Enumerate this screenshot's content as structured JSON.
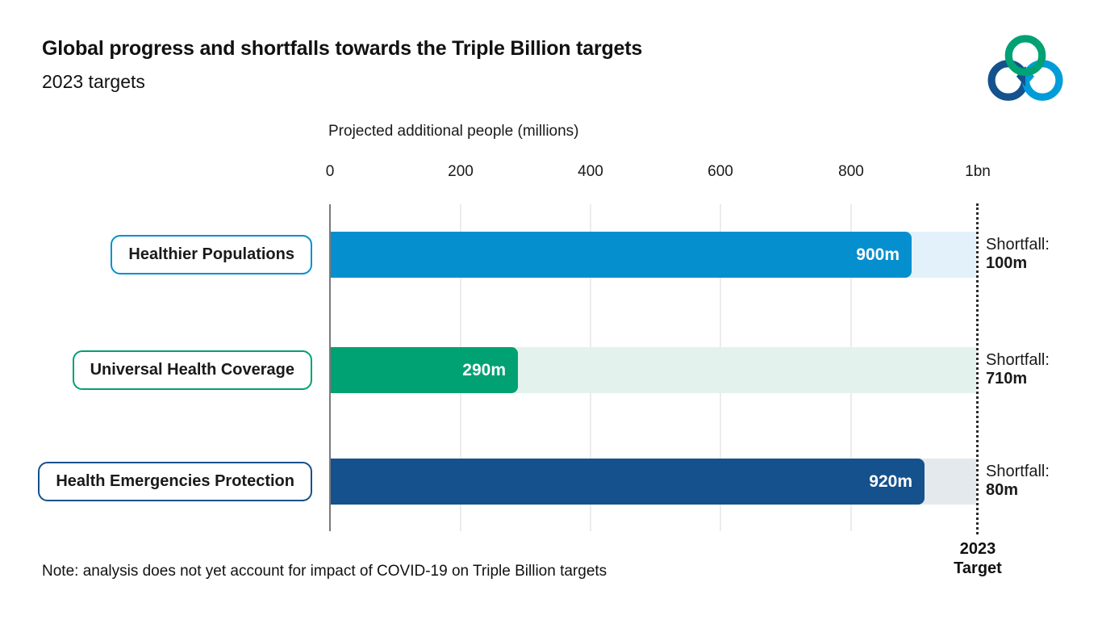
{
  "header": {
    "title": "Global progress and shortfalls towards the Triple Billion targets",
    "subtitle": "2023 targets"
  },
  "logo": {
    "name": "triple-billion-logo",
    "colors": {
      "green": "#00A173",
      "navy": "#14528E",
      "blue": "#009CD9"
    }
  },
  "note": "Note: analysis does not yet account for impact of COVID-19 on Triple Billion targets",
  "target_label": {
    "line1": "2023",
    "line2": "Target"
  },
  "chart_data": {
    "type": "bar",
    "orientation": "horizontal",
    "title": "Projected additional people (millions)",
    "x_ticks": [
      "0",
      "200",
      "400",
      "600",
      "800",
      "1bn"
    ],
    "x_range_millions": [
      0,
      1000
    ],
    "target_value_millions": 1000,
    "grid": true,
    "rows": [
      {
        "label": "Healthier Populations",
        "value_millions": 900,
        "value_label": "900m",
        "shortfall_millions": 100,
        "shortfall_label": "Shortfall:",
        "shortfall_value": "100m",
        "bar_color": "#068FCE",
        "track_color": "#E3F1FA"
      },
      {
        "label": "Universal Health Coverage",
        "value_millions": 290,
        "value_label": "290m",
        "shortfall_millions": 710,
        "shortfall_label": "Shortfall:",
        "shortfall_value": "710m",
        "bar_color": "#00A173",
        "track_color": "#E3F2EC"
      },
      {
        "label": "Health Emergencies Protection",
        "value_millions": 920,
        "value_label": "920m",
        "shortfall_millions": 80,
        "shortfall_label": "Shortfall:",
        "shortfall_value": "80m",
        "bar_color": "#15518C",
        "track_color": "#E4E9EE"
      }
    ]
  }
}
